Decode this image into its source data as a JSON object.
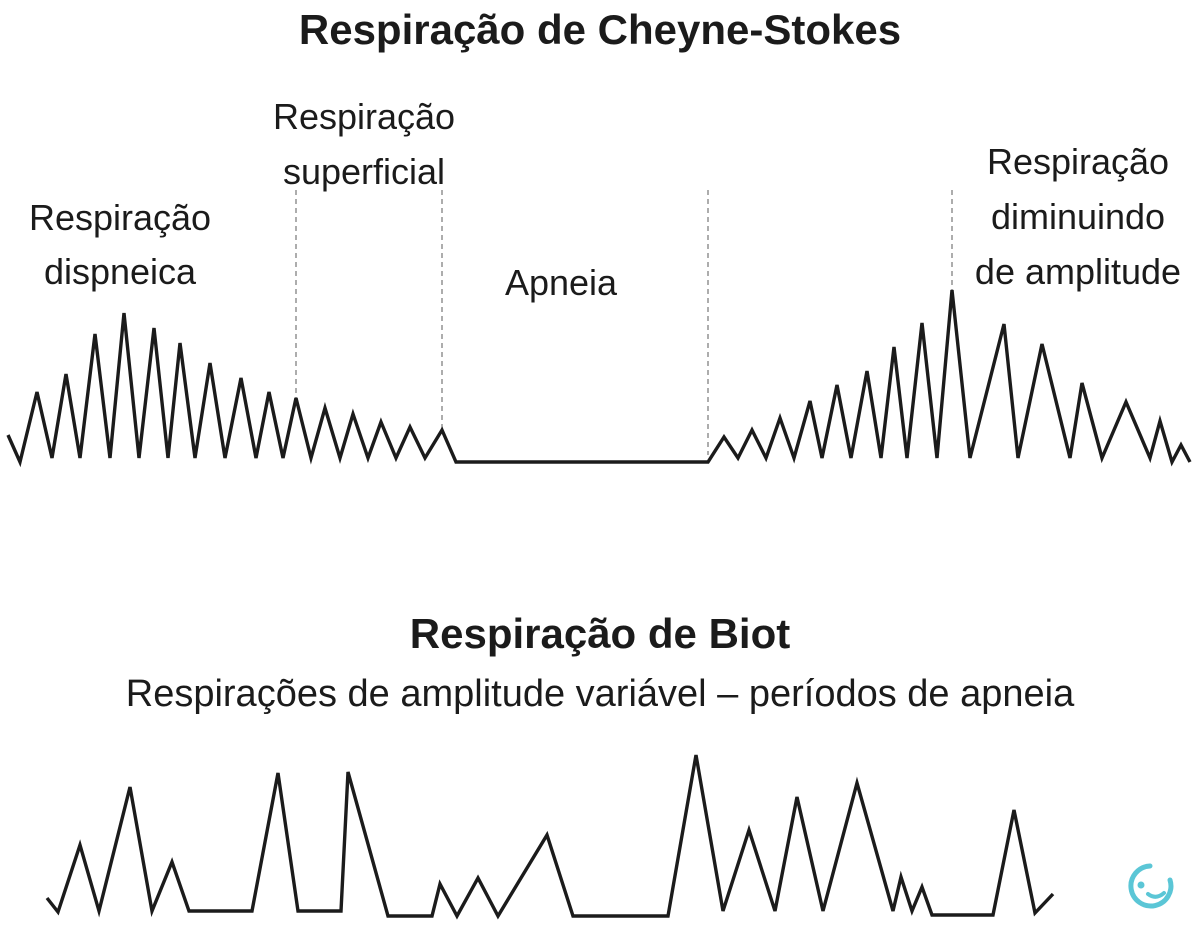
{
  "cheyne_stokes": {
    "title": "Respiração de Cheyne-Stokes",
    "labels": {
      "dispneica": [
        "Respiração",
        "dispneica"
      ],
      "superficial": [
        "Respiração",
        "superficial"
      ],
      "apneia": "Apneia",
      "diminuindo": [
        "Respiração",
        "diminuindo",
        "de amplitude"
      ]
    }
  },
  "biot": {
    "title": "Respiração de Biot",
    "subtitle": "Respirações de amplitude variável – períodos de apneia"
  },
  "logo": {
    "icon": "brand-logo-icon",
    "color": "#5bc6d6"
  }
}
